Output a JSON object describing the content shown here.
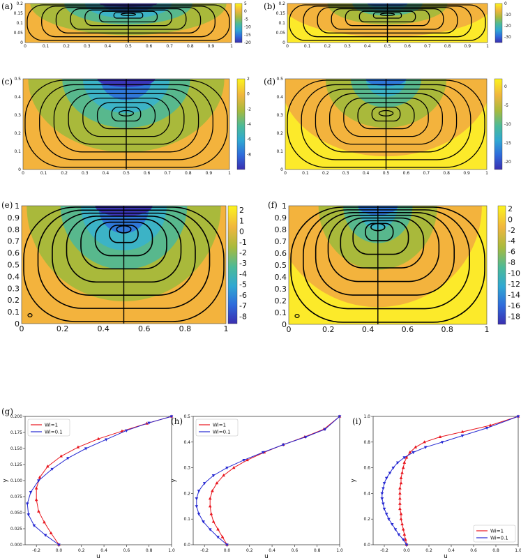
{
  "colors": {
    "yellow": "#fcea2a",
    "orange": "#f3b33d",
    "olive": "#a9b93b",
    "green": "#58b88d",
    "teal": "#3cb3c6",
    "blue": "#2f78d9",
    "purple": "#3b36b9",
    "wi1": "#e8141d",
    "wi01": "#2528d2"
  },
  "chart_data": [
    {
      "type": "heatmap",
      "panel": "(a)",
      "xlim": [
        0,
        1
      ],
      "ylim": [
        0,
        0.2
      ],
      "xticks": [
        "0",
        "0.1",
        "0.2",
        "0.3",
        "0.4",
        "0.5",
        "0.6",
        "0.7",
        "0.8",
        "0.9",
        "1"
      ],
      "yticks": [
        "0",
        "0.05",
        "0.1",
        "0.15",
        "0.2"
      ],
      "colorbar": {
        "min": -20,
        "max": 5,
        "ticks": [
          "5",
          "0",
          "-5",
          "-10",
          "-15",
          "-20"
        ]
      }
    },
    {
      "type": "heatmap",
      "panel": "(b)",
      "xlim": [
        0,
        1
      ],
      "ylim": [
        0,
        0.2
      ],
      "xticks": [
        "0",
        "0.1",
        "0.2",
        "0.3",
        "0.4",
        "0.5",
        "0.6",
        "0.7",
        "0.8",
        "0.9",
        "1"
      ],
      "yticks": [
        "0",
        "0.05",
        "0.1",
        "0.15",
        "0.2"
      ],
      "colorbar": {
        "min": -35,
        "max": 0,
        "ticks": [
          "0",
          "-10",
          "-20",
          "-30"
        ]
      }
    },
    {
      "type": "heatmap",
      "panel": "(c)",
      "xlim": [
        0,
        1
      ],
      "ylim": [
        0,
        0.5
      ],
      "xticks": [
        "0",
        "0.1",
        "0.2",
        "0.3",
        "0.4",
        "0.5",
        "0.6",
        "0.7",
        "0.8",
        "0.9",
        "1"
      ],
      "yticks": [
        "0",
        "0.1",
        "0.2",
        "0.3",
        "0.4",
        "0.5"
      ],
      "colorbar": {
        "min": -10,
        "max": 2,
        "ticks": [
          "2",
          "0",
          "-2",
          "-4",
          "-6",
          "-8"
        ]
      }
    },
    {
      "type": "heatmap",
      "panel": "(d)",
      "xlim": [
        0,
        1
      ],
      "ylim": [
        0,
        0.5
      ],
      "xticks": [
        "0",
        "0.1",
        "0.2",
        "0.3",
        "0.4",
        "0.5",
        "0.6",
        "0.7",
        "0.8",
        "0.9",
        "1"
      ],
      "yticks": [
        "0",
        "0.1",
        "0.2",
        "0.3",
        "0.4",
        "0.5"
      ],
      "colorbar": {
        "min": -22,
        "max": 2,
        "ticks": [
          "0",
          "-5",
          "-10",
          "-15",
          "-20"
        ]
      }
    },
    {
      "type": "heatmap",
      "panel": "(e)",
      "xlim": [
        0,
        1
      ],
      "ylim": [
        0,
        1
      ],
      "xticks": [
        "0",
        "0.2",
        "0.4",
        "0.6",
        "0.8",
        "1"
      ],
      "yticks": [
        "0",
        "0.1",
        "0.2",
        "0.3",
        "0.4",
        "0.5",
        "0.6",
        "0.7",
        "0.8",
        "0.9",
        "1"
      ],
      "colorbar": {
        "min": -8.7,
        "max": 2.4,
        "ticks": [
          "2",
          "1",
          "0",
          "-1",
          "-2",
          "-3",
          "-4",
          "-5",
          "-6",
          "-7",
          "-8"
        ]
      }
    },
    {
      "type": "heatmap",
      "panel": "(f)",
      "xlim": [
        0,
        1
      ],
      "ylim": [
        0,
        1
      ],
      "xticks": [
        "0",
        "0.2",
        "0.4",
        "0.6",
        "0.8",
        "1"
      ],
      "yticks": [
        "0",
        "0.1",
        "0.2",
        "0.3",
        "0.4",
        "0.5",
        "0.6",
        "0.7",
        "0.8",
        "0.9",
        "1"
      ],
      "colorbar": {
        "min": -19.5,
        "max": 2.5,
        "ticks": [
          "2",
          "0",
          "-2",
          "-4",
          "-6",
          "-8",
          "-10",
          "-12",
          "-14",
          "-16",
          "-18"
        ]
      }
    },
    {
      "type": "line",
      "panel": "(g)",
      "xlabel": "u",
      "ylabel": "y",
      "xlim": [
        -0.3,
        1.0
      ],
      "ylim": [
        0,
        0.2
      ],
      "xticks": [
        "-0.2",
        "0.0",
        "0.2",
        "0.4",
        "0.6",
        "0.8",
        "1.0"
      ],
      "yticks": [
        "0.000",
        "0.025",
        "0.050",
        "0.075",
        "0.100",
        "0.125",
        "0.150",
        "0.175",
        "0.200"
      ],
      "legend": "top-left",
      "series": [
        {
          "name": "Wi=1",
          "color": "red",
          "x": [
            0,
            -0.07,
            -0.13,
            -0.18,
            -0.2,
            -0.2,
            -0.17,
            -0.1,
            0.02,
            0.17,
            0.35,
            0.56,
            0.78,
            1.0
          ],
          "y": [
            0,
            0.018,
            0.035,
            0.052,
            0.07,
            0.088,
            0.105,
            0.122,
            0.138,
            0.152,
            0.165,
            0.177,
            0.189,
            0.2
          ]
        },
        {
          "name": "Wi=0.1",
          "color": "blue",
          "x": [
            0,
            -0.12,
            -0.22,
            -0.27,
            -0.28,
            -0.25,
            -0.18,
            -0.06,
            0.08,
            0.24,
            0.42,
            0.6,
            0.8,
            1.0
          ],
          "y": [
            0,
            0.015,
            0.03,
            0.047,
            0.064,
            0.082,
            0.1,
            0.118,
            0.135,
            0.15,
            0.164,
            0.178,
            0.19,
            0.2
          ]
        }
      ]
    },
    {
      "type": "line",
      "panel": "(h)",
      "xlabel": "u",
      "ylabel": "y",
      "xlim": [
        -0.3,
        1.0
      ],
      "ylim": [
        0,
        0.5
      ],
      "xticks": [
        "-0.2",
        "0.0",
        "0.2",
        "0.4",
        "0.6",
        "0.8",
        "1.0"
      ],
      "yticks": [
        "0.0",
        "0.1",
        "0.2",
        "0.3",
        "0.4",
        "0.5"
      ],
      "legend": "top-left",
      "series": [
        {
          "name": "Wi=1",
          "color": "red",
          "x": [
            0,
            -0.04,
            -0.08,
            -0.12,
            -0.14,
            -0.15,
            -0.15,
            -0.13,
            -0.09,
            -0.03,
            0.06,
            0.18,
            0.33,
            0.5,
            0.69,
            0.86,
            1.0
          ],
          "y": [
            0,
            0.03,
            0.06,
            0.09,
            0.12,
            0.15,
            0.18,
            0.21,
            0.24,
            0.27,
            0.3,
            0.33,
            0.36,
            0.39,
            0.42,
            0.45,
            0.5
          ]
        },
        {
          "name": "Wi=0.1",
          "color": "blue",
          "x": [
            0,
            -0.08,
            -0.15,
            -0.21,
            -0.25,
            -0.27,
            -0.27,
            -0.25,
            -0.2,
            -0.12,
            0.0,
            0.15,
            0.32,
            0.5,
            0.7,
            0.87,
            1.0
          ],
          "y": [
            0,
            0.03,
            0.06,
            0.09,
            0.12,
            0.15,
            0.18,
            0.21,
            0.24,
            0.27,
            0.3,
            0.33,
            0.36,
            0.39,
            0.42,
            0.45,
            0.5
          ]
        }
      ]
    },
    {
      "type": "line",
      "panel": "(i)",
      "xlabel": "u",
      "ylabel": "y",
      "xlim": [
        -0.3,
        1.0
      ],
      "ylim": [
        0,
        1.0
      ],
      "xticks": [
        "-0.2",
        "0.0",
        "0.2",
        "0.4",
        "0.6",
        "0.8",
        "1.0"
      ],
      "yticks": [
        "0.0",
        "0.2",
        "0.4",
        "0.6",
        "0.8",
        "1.0"
      ],
      "legend": "bottom-right",
      "series": [
        {
          "name": "Wi=1",
          "color": "red",
          "x": [
            0,
            -0.01,
            -0.02,
            -0.03,
            -0.04,
            -0.05,
            -0.05,
            -0.06,
            -0.06,
            -0.06,
            -0.06,
            -0.06,
            -0.05,
            -0.05,
            -0.04,
            -0.03,
            -0.02,
            0.0,
            0.03,
            0.08,
            0.16,
            0.3,
            0.5,
            0.75,
            1.0
          ],
          "y": [
            0,
            0.04,
            0.08,
            0.12,
            0.16,
            0.2,
            0.24,
            0.28,
            0.32,
            0.36,
            0.4,
            0.44,
            0.48,
            0.52,
            0.56,
            0.6,
            0.64,
            0.68,
            0.72,
            0.76,
            0.8,
            0.84,
            0.88,
            0.93,
            1.0
          ]
        },
        {
          "name": "Wi=0.1",
          "color": "blue",
          "x": [
            0,
            -0.03,
            -0.07,
            -0.1,
            -0.13,
            -0.16,
            -0.18,
            -0.2,
            -0.21,
            -0.22,
            -0.22,
            -0.21,
            -0.2,
            -0.18,
            -0.15,
            -0.12,
            -0.08,
            -0.02,
            0.06,
            0.17,
            0.32,
            0.5,
            0.72,
            1.0
          ],
          "y": [
            0,
            0.04,
            0.08,
            0.12,
            0.16,
            0.2,
            0.24,
            0.28,
            0.32,
            0.36,
            0.4,
            0.44,
            0.48,
            0.52,
            0.56,
            0.6,
            0.64,
            0.68,
            0.72,
            0.76,
            0.8,
            0.85,
            0.91,
            1.0
          ]
        }
      ]
    }
  ]
}
